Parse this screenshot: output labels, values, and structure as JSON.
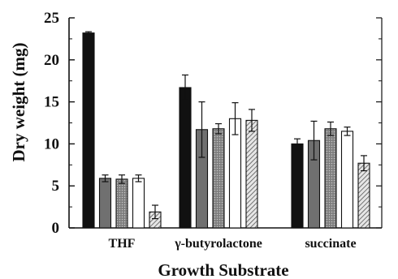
{
  "chart_data": {
    "type": "bar",
    "xlabel": "Growth Substrate",
    "ylabel": "Dry weight (mg)",
    "ylim": [
      0,
      25
    ],
    "yticks": [
      "0",
      "5",
      "10",
      "15",
      "20",
      "25"
    ],
    "categories": [
      "THF",
      "γ-butyrolactone",
      "succinate"
    ],
    "legend": "none",
    "grid": false,
    "series": [
      {
        "fill": "black",
        "color": "#111111",
        "values": [
          23.2,
          16.7,
          10.0
        ],
        "errors": [
          0.15,
          1.5,
          0.6
        ]
      },
      {
        "fill": "dark-gray",
        "color": "#707070",
        "values": [
          5.9,
          11.7,
          10.4
        ],
        "errors": [
          0.4,
          3.3,
          2.3
        ]
      },
      {
        "fill": "gray-dotted",
        "color": "#9a9a9a",
        "values": [
          5.8,
          11.8,
          11.8
        ],
        "errors": [
          0.5,
          0.6,
          0.8
        ]
      },
      {
        "fill": "white",
        "color": "#ffffff",
        "values": [
          5.9,
          13.0,
          11.5
        ],
        "errors": [
          0.4,
          1.9,
          0.5
        ]
      },
      {
        "fill": "hatched",
        "color": "#b5b5b5",
        "values": [
          1.9,
          12.8,
          7.7
        ],
        "errors": [
          0.8,
          1.3,
          0.9
        ]
      }
    ]
  }
}
